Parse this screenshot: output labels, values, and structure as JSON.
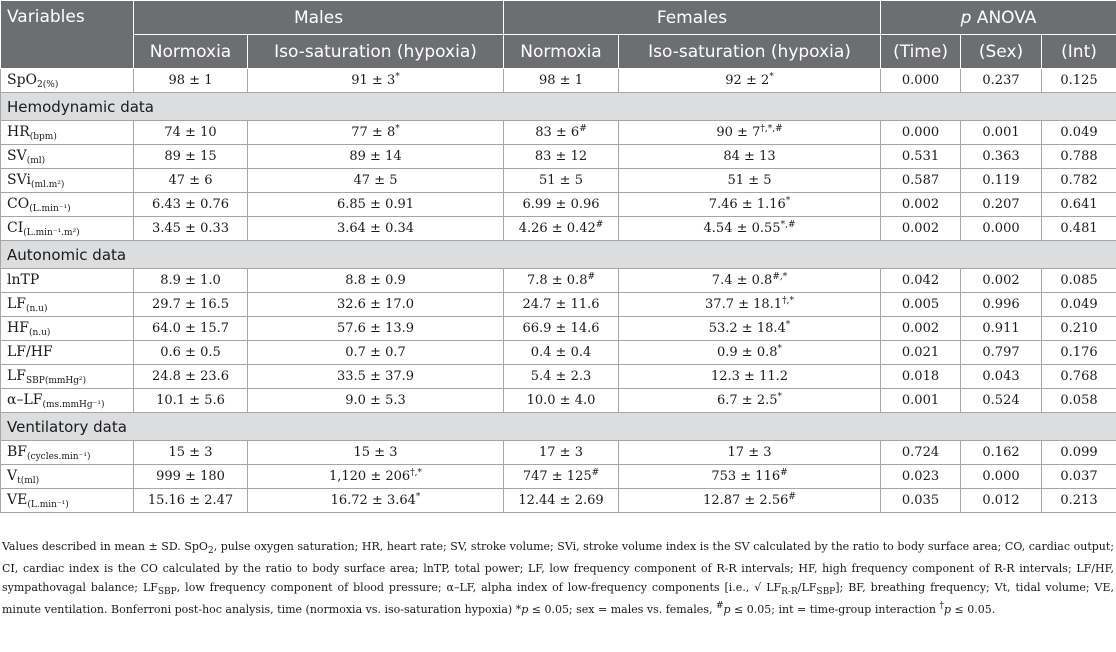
{
  "header": {
    "variables": "Variables",
    "males": "Males",
    "females": "Females",
    "anova_p": "p",
    "anova_rest": " ANOVA",
    "normoxia": "Normoxia",
    "isosat": "Iso-saturation (hypoxia)",
    "time": "(Time)",
    "sex": "(Sex)",
    "int": "(Int)"
  },
  "spo2": {
    "pre": "SpO",
    "two": "2",
    "unit": "(%)",
    "mn": "98 ± 1",
    "mi": "91 ± 3",
    "mi_s": "*",
    "fn": "98 ± 1",
    "fi": "92 ± 2",
    "fi_s": "*",
    "pt": "0.000",
    "ps": "0.237",
    "pi": "0.125"
  },
  "sections": {
    "hemo": "Hemodynamic data",
    "auto": "Autonomic data",
    "vent": "Ventilatory data"
  },
  "hemo": [
    {
      "name": "HR",
      "unit": "(bpm)",
      "mn": "74 ± 10",
      "mn_s": "",
      "mi": "77 ± 8",
      "mi_s": "*",
      "fn": "83 ± 6",
      "fn_s": "#",
      "fi": "90 ± 7",
      "fi_s": "†,*,#",
      "pt": "0.000",
      "ps": "0.001",
      "pi": "0.049"
    },
    {
      "name": "SV",
      "unit": "(ml)",
      "mn": "89 ± 15",
      "mn_s": "",
      "mi": "89 ± 14",
      "mi_s": "",
      "fn": "83 ± 12",
      "fn_s": "",
      "fi": "84 ± 13",
      "fi_s": "",
      "pt": "0.531",
      "ps": "0.363",
      "pi": "0.788"
    },
    {
      "name": "SVi",
      "unit": "(ml.m²)",
      "mn": "47 ± 6",
      "mn_s": "",
      "mi": "47 ± 5",
      "mi_s": "",
      "fn": "51 ± 5",
      "fn_s": "",
      "fi": "51 ± 5",
      "fi_s": "",
      "pt": "0.587",
      "ps": "0.119",
      "pi": "0.782"
    },
    {
      "name": "CO",
      "unit": "(L.min⁻¹)",
      "mn": "6.43 ± 0.76",
      "mn_s": "",
      "mi": "6.85 ± 0.91",
      "mi_s": "",
      "fn": "6.99 ± 0.96",
      "fn_s": "",
      "fi": "7.46 ± 1.16",
      "fi_s": "*",
      "pt": "0.002",
      "ps": "0.207",
      "pi": "0.641"
    },
    {
      "name": "CI",
      "unit": "(L.min⁻¹.m²)",
      "mn": "3.45 ± 0.33",
      "mn_s": "",
      "mi": "3.64 ± 0.34",
      "mi_s": "",
      "fn": "4.26 ± 0.42",
      "fn_s": "#",
      "fi": "4.54 ± 0.55",
      "fi_s": "*,#",
      "pt": "0.002",
      "ps": "0.000",
      "pi": "0.481"
    }
  ],
  "auto": [
    {
      "name": "lnTP",
      "unit": "",
      "mn": "8.9 ± 1.0",
      "mn_s": "",
      "mi": "8.8 ± 0.9",
      "mi_s": "",
      "fn": "7.8 ± 0.8",
      "fn_s": "#",
      "fi": "7.4 ± 0.8",
      "fi_s": "#,*",
      "pt": "0.042",
      "ps": "0.002",
      "pi": "0.085"
    },
    {
      "name": "LF",
      "unit": "(n.u)",
      "mn": "29.7 ± 16.5",
      "mn_s": "",
      "mi": "32.6 ± 17.0",
      "mi_s": "",
      "fn": "24.7 ± 11.6",
      "fn_s": "",
      "fi": "37.7 ± 18.1",
      "fi_s": "†,*",
      "pt": "0.005",
      "ps": "0.996",
      "pi": "0.049"
    },
    {
      "name": "HF",
      "unit": "(n.u)",
      "mn": "64.0 ± 15.7",
      "mn_s": "",
      "mi": "57.6 ± 13.9",
      "mi_s": "",
      "fn": "66.9 ± 14.6",
      "fn_s": "",
      "fi": "53.2 ± 18.4",
      "fi_s": "*",
      "pt": "0.002",
      "ps": "0.911",
      "pi": "0.210"
    },
    {
      "name": "LF/HF",
      "unit": "",
      "mn": "0.6 ± 0.5",
      "mn_s": "",
      "mi": "0.7 ± 0.7",
      "mi_s": "",
      "fn": "0.4 ± 0.4",
      "fn_s": "",
      "fi": "0.9 ± 0.8",
      "fi_s": "*",
      "pt": "0.021",
      "ps": "0.797",
      "pi": "0.176"
    },
    {
      "name": "LF",
      "unit": "SBP(mmHg²)",
      "mn": "24.8 ± 23.6",
      "mn_s": "",
      "mi": "33.5 ± 37.9",
      "mi_s": "",
      "fn": "5.4 ± 2.3",
      "fn_s": "",
      "fi": "12.3 ± 11.2",
      "fi_s": "",
      "pt": "0.018",
      "ps": "0.043",
      "pi": "0.768"
    },
    {
      "name": "α–LF",
      "unit": "(ms.mmHg⁻¹)",
      "mn": "10.1 ± 5.6",
      "mn_s": "",
      "mi": "9.0 ± 5.3",
      "mi_s": "",
      "fn": "10.0 ± 4.0",
      "fn_s": "",
      "fi": "6.7 ± 2.5",
      "fi_s": "*",
      "pt": "0.001",
      "ps": "0.524",
      "pi": "0.058"
    }
  ],
  "vent": [
    {
      "name": "BF",
      "unit": "(cycles.min⁻¹)",
      "mn": "15 ± 3",
      "mn_s": "",
      "mi": "15 ± 3",
      "mi_s": "",
      "fn": "17 ± 3",
      "fn_s": "",
      "fi": "17 ± 3",
      "fi_s": "",
      "pt": "0.724",
      "ps": "0.162",
      "pi": "0.099"
    },
    {
      "name": "V",
      "unit": "t(ml)",
      "mn": "999 ± 180",
      "mn_s": "",
      "mi": "1,120 ± 206",
      "mi_s": "†,*",
      "fn": "747 ± 125",
      "fn_s": "#",
      "fi": "753 ± 116",
      "fi_s": "#",
      "pt": "0.023",
      "ps": "0.000",
      "pi": "0.037"
    },
    {
      "name": "VE",
      "unit": "(L.min⁻¹)",
      "mn": "15.16 ± 2.47",
      "mn_s": "",
      "mi": "16.72 ± 3.64",
      "mi_s": "*",
      "fn": "12.44 ± 2.69",
      "fn_s": "",
      "fi": "12.87 ± 2.56",
      "fi_s": "#",
      "pt": "0.035",
      "ps": "0.012",
      "pi": "0.213"
    }
  ],
  "note": {
    "a": "Values described in mean ± SD. SpO",
    "a_sub": "2",
    "b": ", pulse oxygen saturation; HR, heart rate; SV, stroke volume; SVi, stroke volume index is the SV calculated by the ratio to body surface area; CO, cardiac output; CI, cardiac index is the CO calculated by the ratio to body surface area; lnTP, total power; LF, low frequency component of R-R intervals; HF, high frequency component of R-R intervals; LF/HF, sympathovagal balance; LF",
    "b_sub": "SBP",
    "c": ", low frequency component of blood pressure; α–LF, alpha index of low-frequency components [i.e., √ LF",
    "c_sub1": "R-R",
    "c2": "/LF",
    "c_sub2": "SBP",
    "d": "]; BF, breathing frequency; Vt, tidal volume; VE, minute ventilation. Bonferroni post-hoc analysis, time (normoxia vs. iso-saturation hypoxia) *",
    "p1": "p",
    "e": " ≤ 0.05; sex = males vs. females, ",
    "hash": "#",
    "p2": "p",
    "f": " ≤ 0.05; int = time-group interaction ",
    "dag": "†",
    "p3": "p",
    "g": " ≤ 0.05."
  }
}
